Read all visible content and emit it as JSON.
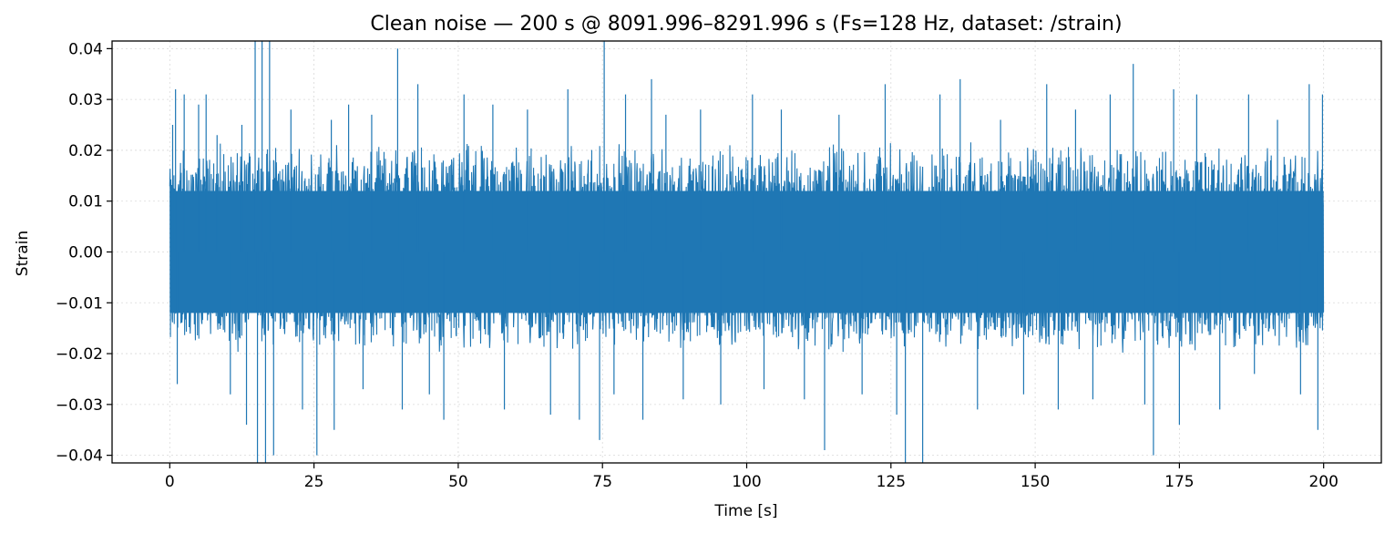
{
  "chart_data": {
    "type": "line",
    "title": "Clean noise — 200 s @ 8091.996–8291.996 s  (Fs=128 Hz, dataset: /strain)",
    "xlabel": "Time [s]",
    "ylabel": "Strain",
    "xlim": [
      -10,
      210
    ],
    "ylim": [
      -0.0415,
      0.0415
    ],
    "x_ticks": [
      0,
      25,
      50,
      75,
      100,
      125,
      150,
      175,
      200
    ],
    "x_tick_labels": [
      "0",
      "25",
      "50",
      "75",
      "100",
      "125",
      "150",
      "175",
      "200"
    ],
    "y_ticks": [
      -0.04,
      -0.03,
      -0.02,
      -0.01,
      0.0,
      0.01,
      0.02,
      0.03,
      0.04
    ],
    "y_tick_labels": [
      "−0.04",
      "−0.03",
      "−0.02",
      "−0.01",
      "0.00",
      "0.01",
      "0.02",
      "0.03",
      "0.04"
    ],
    "grid": true,
    "series": [
      {
        "color": "#1f77b4",
        "x_range": [
          0,
          200
        ],
        "sample_rate_hz": 128,
        "typical_envelope": [
          -0.02,
          0.022
        ],
        "spikes": [
          {
            "x": 0.5,
            "y": 0.025
          },
          {
            "x": 1.0,
            "y": 0.032
          },
          {
            "x": 1.3,
            "y": -0.026
          },
          {
            "x": 2.5,
            "y": 0.031
          },
          {
            "x": 5.0,
            "y": 0.029
          },
          {
            "x": 6.3,
            "y": 0.031
          },
          {
            "x": 8.2,
            "y": 0.023
          },
          {
            "x": 10.5,
            "y": -0.028
          },
          {
            "x": 12.5,
            "y": 0.025
          },
          {
            "x": 13.3,
            "y": -0.034
          },
          {
            "x": 14.8,
            "y": 0.042
          },
          {
            "x": 15.2,
            "y": -0.042
          },
          {
            "x": 16.0,
            "y": 0.042
          },
          {
            "x": 16.6,
            "y": -0.042
          },
          {
            "x": 17.3,
            "y": 0.042
          },
          {
            "x": 18.0,
            "y": -0.04
          },
          {
            "x": 21.0,
            "y": 0.028
          },
          {
            "x": 23.0,
            "y": -0.031
          },
          {
            "x": 25.5,
            "y": -0.04
          },
          {
            "x": 28.0,
            "y": 0.026
          },
          {
            "x": 28.5,
            "y": -0.035
          },
          {
            "x": 31.0,
            "y": 0.029
          },
          {
            "x": 33.5,
            "y": -0.027
          },
          {
            "x": 35.0,
            "y": 0.027
          },
          {
            "x": 39.5,
            "y": 0.04
          },
          {
            "x": 40.3,
            "y": -0.031
          },
          {
            "x": 43.0,
            "y": 0.033
          },
          {
            "x": 45.0,
            "y": -0.028
          },
          {
            "x": 47.5,
            "y": -0.033
          },
          {
            "x": 51.0,
            "y": 0.031
          },
          {
            "x": 56.0,
            "y": 0.029
          },
          {
            "x": 58.0,
            "y": -0.031
          },
          {
            "x": 62.0,
            "y": 0.028
          },
          {
            "x": 66.0,
            "y": -0.032
          },
          {
            "x": 69.0,
            "y": 0.032
          },
          {
            "x": 71.0,
            "y": -0.033
          },
          {
            "x": 74.5,
            "y": -0.037
          },
          {
            "x": 75.3,
            "y": 0.042
          },
          {
            "x": 77.0,
            "y": -0.028
          },
          {
            "x": 79.0,
            "y": 0.031
          },
          {
            "x": 82.0,
            "y": -0.033
          },
          {
            "x": 83.5,
            "y": 0.034
          },
          {
            "x": 86.0,
            "y": 0.027
          },
          {
            "x": 89.0,
            "y": -0.029
          },
          {
            "x": 92.0,
            "y": 0.028
          },
          {
            "x": 95.5,
            "y": -0.03
          },
          {
            "x": 101.0,
            "y": 0.031
          },
          {
            "x": 103.0,
            "y": -0.027
          },
          {
            "x": 106.0,
            "y": 0.028
          },
          {
            "x": 110.0,
            "y": -0.029
          },
          {
            "x": 113.5,
            "y": -0.039
          },
          {
            "x": 116.0,
            "y": 0.027
          },
          {
            "x": 120.0,
            "y": -0.028
          },
          {
            "x": 124.0,
            "y": 0.033
          },
          {
            "x": 126.0,
            "y": -0.032
          },
          {
            "x": 127.5,
            "y": -0.042
          },
          {
            "x": 130.5,
            "y": -0.042
          },
          {
            "x": 133.5,
            "y": 0.031
          },
          {
            "x": 137.0,
            "y": 0.034
          },
          {
            "x": 140.0,
            "y": -0.031
          },
          {
            "x": 144.0,
            "y": 0.026
          },
          {
            "x": 148.0,
            "y": -0.028
          },
          {
            "x": 152.0,
            "y": 0.033
          },
          {
            "x": 154.0,
            "y": -0.031
          },
          {
            "x": 157.0,
            "y": 0.028
          },
          {
            "x": 160.0,
            "y": -0.029
          },
          {
            "x": 163.0,
            "y": 0.031
          },
          {
            "x": 167.0,
            "y": 0.037
          },
          {
            "x": 169.0,
            "y": -0.03
          },
          {
            "x": 170.5,
            "y": -0.04
          },
          {
            "x": 174.0,
            "y": 0.032
          },
          {
            "x": 175.0,
            "y": -0.034
          },
          {
            "x": 178.0,
            "y": 0.031
          },
          {
            "x": 182.0,
            "y": -0.031
          },
          {
            "x": 187.0,
            "y": 0.031
          },
          {
            "x": 188.0,
            "y": -0.024
          },
          {
            "x": 192.0,
            "y": 0.026
          },
          {
            "x": 196.0,
            "y": -0.028
          },
          {
            "x": 197.5,
            "y": 0.033
          },
          {
            "x": 199.0,
            "y": -0.035
          },
          {
            "x": 199.8,
            "y": 0.031
          }
        ]
      }
    ]
  }
}
